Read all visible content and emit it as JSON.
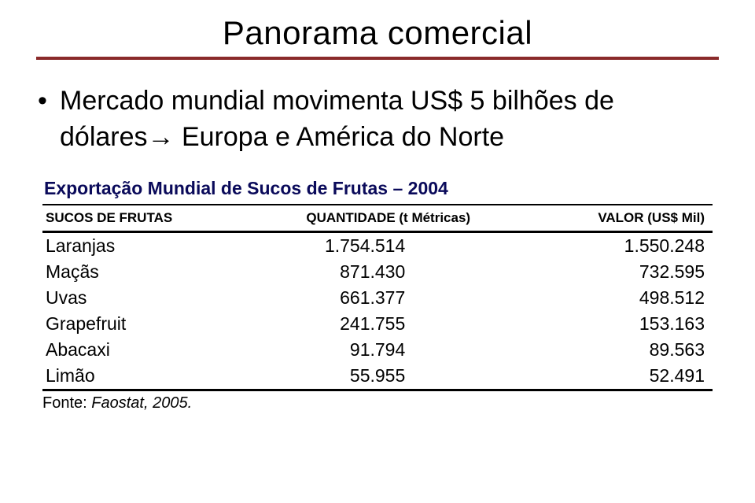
{
  "title": "Panorama comercial",
  "title_rule_color": "#8a2a2a",
  "bullet": {
    "marker": "•",
    "text_before_arrow": "Mercado mundial movimenta US$ 5 bilhões de dólares",
    "arrow": "→",
    "text_after_arrow": " Europa e América do Norte"
  },
  "table": {
    "title": "Exportação Mundial de Sucos de Frutas – 2004",
    "title_color": "#0a0a5a",
    "columns": [
      {
        "key": "name",
        "label": "SUCOS DE FRUTAS",
        "align": "left"
      },
      {
        "key": "qty",
        "label": "QUANTIDADE (t Métricas)",
        "align": "center"
      },
      {
        "key": "val",
        "label": "VALOR (US$ Mil)",
        "align": "right"
      }
    ],
    "rows": [
      {
        "name": "Laranjas",
        "qty": "1.754.514",
        "val": "1.550.248"
      },
      {
        "name": "Maçãs",
        "qty": "871.430",
        "val": "732.595"
      },
      {
        "name": "Uvas",
        "qty": "661.377",
        "val": "498.512"
      },
      {
        "name": "Grapefruit",
        "qty": "241.755",
        "val": "153.163"
      },
      {
        "name": "Abacaxi",
        "qty": "91.794",
        "val": "89.563"
      },
      {
        "name": "Limão",
        "qty": "55.955",
        "val": "52.491"
      }
    ],
    "source_label": "Fonte: ",
    "source_value": "Faostat, 2005."
  }
}
